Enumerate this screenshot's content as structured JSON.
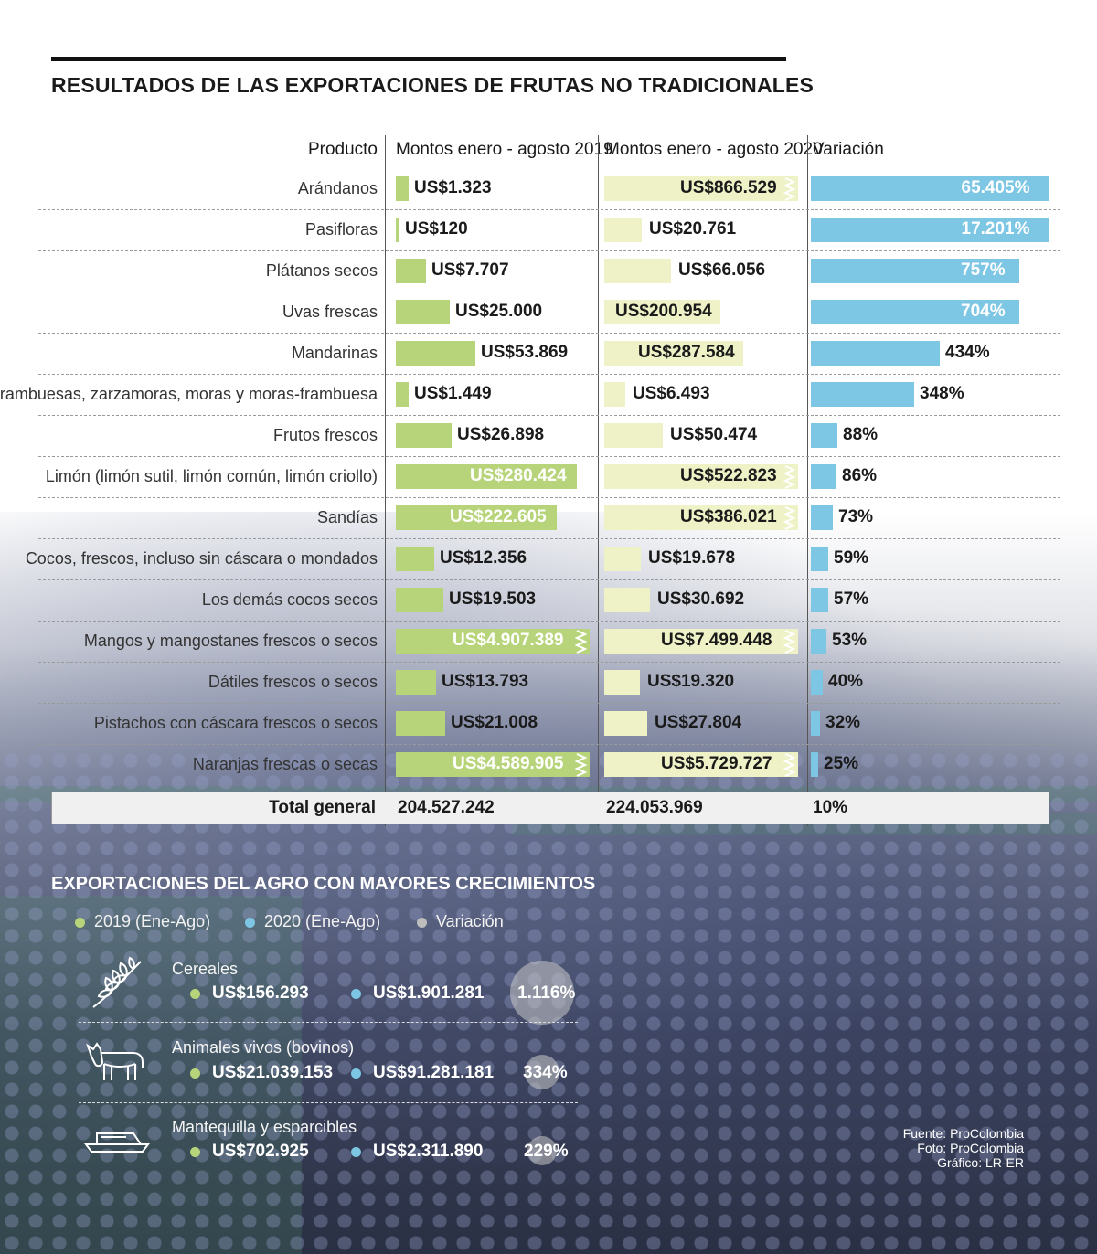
{
  "title": "RESULTADOS DE LAS EXPORTACIONES DE FRUTAS NO TRADICIONALES",
  "headers": {
    "product": "Producto",
    "y2019": "Montos enero - agosto 2019",
    "y2020": "Montos enero - agosto 2020",
    "variation": "Variación"
  },
  "colors": {
    "y2019": "#b7d47a",
    "y2020": "#eef2c6",
    "variation": "#7dc6e4"
  },
  "chart_data": {
    "type": "bar",
    "categories": [
      "Arándanos",
      "Pasifloras",
      "Plátanos secos",
      "Uvas frescas",
      "Mandarinas",
      "Frambuesas, zarzamoras, moras y moras-frambuesa",
      "Frutos frescos",
      "Limón (limón sutil, limón común, limón criollo)",
      "Sandías",
      "Cocos, frescos, incluso sin cáscara o mondados",
      "Los demás cocos secos",
      "Mangos y mangostanes frescos o secos",
      "Dátiles frescos o secos",
      "Pistachos con cáscara frescos o secos",
      "Naranjas frescas o secas"
    ],
    "series": [
      {
        "name": "Montos enero - agosto 2019",
        "labels": [
          "US$1.323",
          "US$120",
          "US$7.707",
          "US$25.000",
          "US$53.869",
          "US$1.449",
          "US$26.898",
          "US$280.424",
          "US$222.605",
          "US$12.356",
          "US$19.503",
          "US$4.907.389",
          "US$13.793",
          "US$21.008",
          "US$4.589.905"
        ],
        "values": [
          1323,
          120,
          7707,
          25000,
          53869,
          1449,
          26898,
          280424,
          222605,
          12356,
          19503,
          4907389,
          13793,
          21008,
          4589905
        ],
        "truncated": [
          false,
          false,
          false,
          false,
          false,
          false,
          false,
          false,
          false,
          false,
          false,
          true,
          false,
          false,
          true
        ]
      },
      {
        "name": "Montos enero - agosto 2020",
        "labels": [
          "US$866.529",
          "US$20.761",
          "US$66.056",
          "US$200.954",
          "US$287.584",
          "US$6.493",
          "US$50.474",
          "US$522.823",
          "US$386.021",
          "US$19.678",
          "US$30.692",
          "US$7.499.448",
          "US$19.320",
          "US$27.804",
          "US$5.729.727"
        ],
        "values": [
          866529,
          20761,
          66056,
          200954,
          287584,
          6493,
          50474,
          522823,
          386021,
          19678,
          30692,
          7499448,
          19320,
          27804,
          5729727
        ],
        "truncated": [
          true,
          false,
          false,
          false,
          false,
          false,
          false,
          true,
          true,
          false,
          false,
          true,
          false,
          false,
          true
        ]
      },
      {
        "name": "Variación",
        "labels": [
          "65.405%",
          "17.201%",
          "757%",
          "704%",
          "434%",
          "348%",
          "88%",
          "86%",
          "73%",
          "59%",
          "57%",
          "53%",
          "40%",
          "32%",
          "25%"
        ],
        "values": [
          65405,
          17201,
          757,
          704,
          434,
          348,
          88,
          86,
          73,
          59,
          57,
          53,
          40,
          32,
          25
        ],
        "truncated": [
          true,
          true,
          false,
          false,
          false,
          false,
          false,
          false,
          false,
          false,
          false,
          false,
          false,
          false,
          false
        ]
      }
    ],
    "total": {
      "label": "Total general",
      "y2019": "204.527.242",
      "y2020": "224.053.969",
      "variation": "10%"
    }
  },
  "agro": {
    "title": "EXPORTACIONES DEL AGRO CON MAYORES CRECIMIENTOS",
    "legend": [
      "2019 (Ene-Ago)",
      "2020 (Ene-Ago)",
      "Variación"
    ],
    "legend_colors": [
      "#b7d47a",
      "#7dc6e4",
      "#bdbdbd"
    ],
    "items": [
      {
        "name": "Cereales",
        "y2019": "US$156.293",
        "y2020": "US$1.901.281",
        "variation": "1.116%",
        "variation_value": 1116,
        "icon": "wheat-icon"
      },
      {
        "name": "Animales vivos (bovinos)",
        "y2019": "US$21.039.153",
        "y2020": "US$91.281.181",
        "variation": "334%",
        "variation_value": 334,
        "icon": "cow-icon"
      },
      {
        "name": "Mantequilla y esparcibles",
        "y2019": "US$702.925",
        "y2020": "US$2.311.890",
        "variation": "229%",
        "variation_value": 229,
        "icon": "butter-dish-icon"
      }
    ]
  },
  "source": [
    "Fuente: ProColombia",
    "Foto: ProColombia",
    "Gráfico: LR-ER"
  ]
}
